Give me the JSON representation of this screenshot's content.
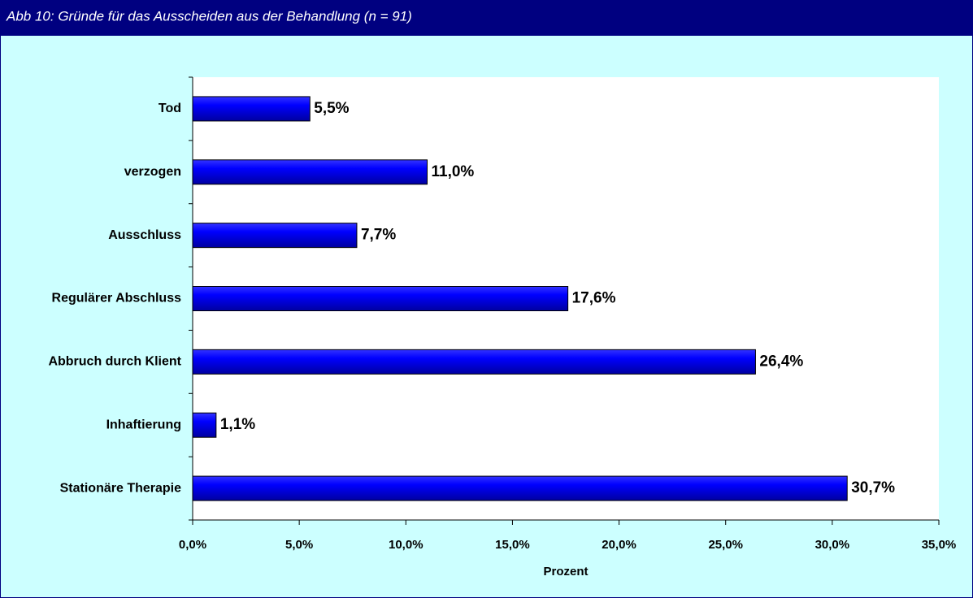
{
  "chart_data": {
    "type": "hbar",
    "title": "Abb 10:  Gründe für das Ausscheiden aus der Behandlung (n = 91)",
    "categories": [
      "Tod",
      "verzogen",
      "Ausschluss",
      "Regulärer Abschluss",
      "Abbruch durch Klient",
      "Inhaftierung",
      "Stationäre Therapie"
    ],
    "values": [
      5.5,
      11.0,
      7.7,
      17.6,
      26.4,
      1.1,
      30.7
    ],
    "value_labels": [
      "5,5%",
      "11,0%",
      "7,7%",
      "17,6%",
      "26,4%",
      "1,1%",
      "30,7%"
    ],
    "color": "#0000ff",
    "xlabel": "Prozent",
    "xlim": [
      0,
      35
    ],
    "xticks": [
      {
        "value": 0,
        "label": "0,0%"
      },
      {
        "value": 5,
        "label": "5,0%"
      },
      {
        "value": 10,
        "label": "10,0%"
      },
      {
        "value": 15,
        "label": "15,0%"
      },
      {
        "value": 20,
        "label": "20,0%"
      },
      {
        "value": 25,
        "label": "25,0%"
      },
      {
        "value": 30,
        "label": "30,0%"
      },
      {
        "value": 35,
        "label": "35,0%"
      }
    ],
    "grid": false
  }
}
